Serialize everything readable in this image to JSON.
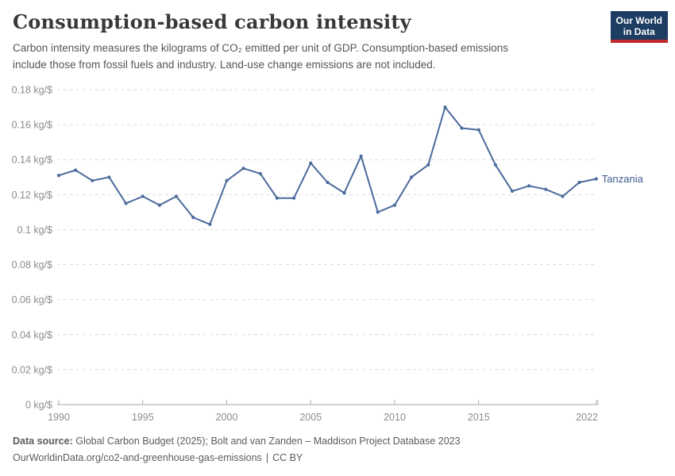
{
  "header": {
    "title": "Consumption-based carbon intensity",
    "subtitle_line1": "Carbon intensity measures the kilograms of CO₂ emitted per unit of GDP. Consumption-based emissions",
    "subtitle_line2": "include those from fossil fuels and industry. Land-use change emissions are not included."
  },
  "logo": {
    "line1": "Our World",
    "line2": "in Data",
    "bg_color": "#1d3d63",
    "accent_color": "#c0282d"
  },
  "chart_data": {
    "type": "line",
    "title": "Consumption-based carbon intensity",
    "xlabel": "",
    "ylabel": "kg/$",
    "grid": "horizontal-dashed",
    "legend_position": "end-of-line-label",
    "xlim": [
      1990,
      2022
    ],
    "ylim": [
      0,
      0.18
    ],
    "xticks": [
      1990,
      1995,
      2000,
      2005,
      2010,
      2015,
      2022
    ],
    "yticks": [
      0,
      0.02,
      0.04,
      0.06,
      0.08,
      0.1,
      0.12,
      0.14,
      0.16,
      0.18
    ],
    "ytick_labels": [
      "0 kg/$",
      "0.02 kg/$",
      "0.04 kg/$",
      "0.06 kg/$",
      "0.08 kg/$",
      "0.1 kg/$",
      "0.12 kg/$",
      "0.14 kg/$",
      "0.16 kg/$",
      "0.18 kg/$"
    ],
    "x": [
      1990,
      1991,
      1992,
      1993,
      1994,
      1995,
      1996,
      1997,
      1998,
      1999,
      2000,
      2001,
      2002,
      2003,
      2004,
      2005,
      2006,
      2007,
      2008,
      2009,
      2010,
      2011,
      2012,
      2013,
      2014,
      2015,
      2016,
      2017,
      2018,
      2019,
      2020,
      2021,
      2022
    ],
    "series": [
      {
        "name": "Tanzania",
        "color": "#4c6a9c",
        "label_color": "#3d5a8f",
        "values": [
          0.131,
          0.134,
          0.128,
          0.13,
          0.115,
          0.119,
          0.114,
          0.119,
          0.107,
          0.103,
          0.128,
          0.135,
          0.132,
          0.118,
          0.118,
          0.138,
          0.127,
          0.121,
          0.142,
          0.11,
          0.114,
          0.13,
          0.137,
          0.17,
          0.158,
          0.157,
          0.137,
          0.122,
          0.125,
          0.123,
          0.119,
          0.127,
          0.129
        ]
      }
    ]
  },
  "footer": {
    "source_label": "Data source:",
    "source_text": "Global Carbon Budget (2025); Bolt and van Zanden – Maddison Project Database 2023",
    "link_text": "OurWorldinData.org/co2-and-greenhouse-gas-emissions",
    "separator": "|",
    "license_text": "CC BY"
  },
  "colors": {
    "gridline": "#dcdcdc",
    "axis": "#a9a9a9",
    "tick_label": "#8c8c8c",
    "title_text": "#383838",
    "subtitle_text": "#555555",
    "footer_text": "#5b5b5b"
  }
}
